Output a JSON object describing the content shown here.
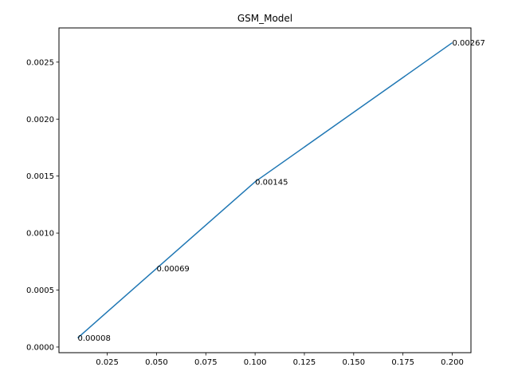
{
  "chart_data": {
    "type": "line",
    "title": "GSM_Model",
    "xlabel": "",
    "ylabel": "",
    "xlim": [
      0.0005,
      0.2095
    ],
    "ylim": [
      -4.95e-05,
      0.0028
    ],
    "xticks": [
      0.025,
      0.05,
      0.075,
      0.1,
      0.125,
      0.15,
      0.175,
      0.2
    ],
    "xtick_labels": [
      "0.025",
      "0.050",
      "0.075",
      "0.100",
      "0.125",
      "0.150",
      "0.175",
      "0.200"
    ],
    "yticks": [
      0,
      0.0005,
      0.001,
      0.0015,
      0.002,
      0.0025
    ],
    "ytick_labels": [
      "0.0000",
      "0.0005",
      "0.0010",
      "0.0015",
      "0.0020",
      "0.0025"
    ],
    "grid": false,
    "series": [
      {
        "color": "#1f77b4",
        "x": [
          0.01,
          0.05,
          0.1,
          0.2
        ],
        "y": [
          8e-05,
          0.00069,
          0.00145,
          0.00267
        ],
        "labels": [
          "0.00008",
          "0.00069",
          "0.00145",
          "0.00267"
        ]
      }
    ]
  }
}
